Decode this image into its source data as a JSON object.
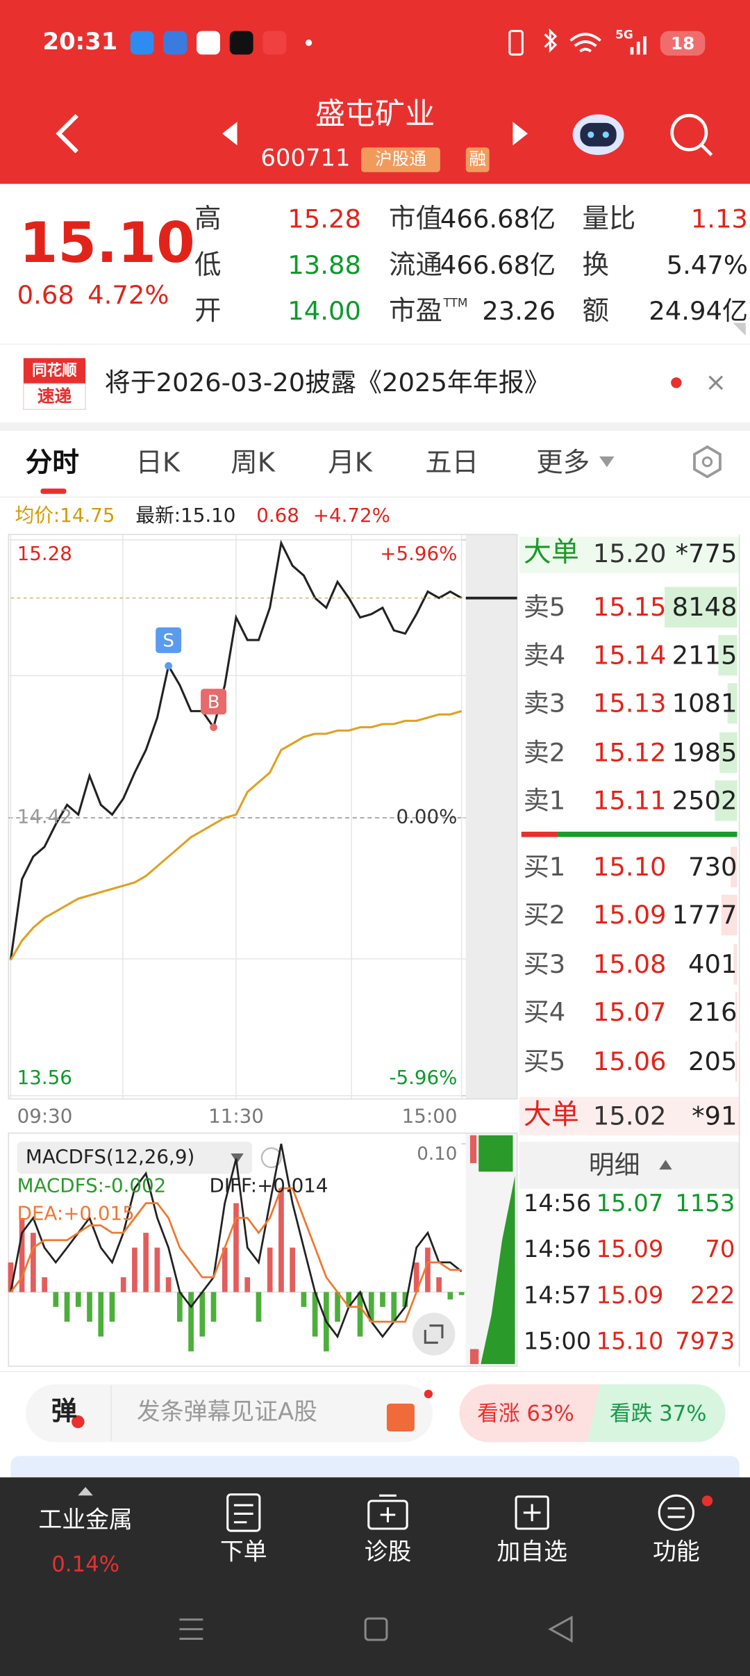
{
  "status_bar": {
    "time": "20:31",
    "network": "5G",
    "battery": "18"
  },
  "header": {
    "title": "盛屯矿业",
    "code": "600711",
    "tags": [
      "沪股通",
      "融"
    ]
  },
  "quote": {
    "price": "15.10",
    "change": "0.68",
    "change_pct": "4.72%",
    "stats": [
      [
        {
          "label": "高",
          "value": "15.28",
          "color": "#e2231a"
        },
        {
          "label": "市值",
          "value": "466.68亿",
          "color": "#222222"
        },
        {
          "label": "量比",
          "value": "1.13",
          "color": "#e2231a"
        }
      ],
      [
        {
          "label": "低",
          "value": "13.88",
          "color": "#0a9a2a"
        },
        {
          "label": "流通",
          "value": "466.68亿",
          "color": "#222222"
        },
        {
          "label": "换",
          "value": "5.47%",
          "color": "#222222"
        }
      ],
      [
        {
          "label": "开",
          "value": "14.00",
          "color": "#0a9a2a"
        },
        {
          "label": "市盈",
          "label_sup": "TTM",
          "value": "23.26",
          "color": "#222222"
        },
        {
          "label": "额",
          "value": "24.94亿",
          "color": "#222222"
        }
      ]
    ]
  },
  "notice": {
    "logo": [
      "同花顺",
      "速递"
    ],
    "text": "将于2026-03-20披露《2025年年报》"
  },
  "tabs": [
    "分时",
    "日K",
    "周K",
    "月K",
    "五日",
    "更多"
  ],
  "chart_data": [
    {
      "type": "line",
      "summary": {
        "avg": "均价:14.75",
        "latest": "最新:15.10",
        "change": "0.68",
        "change_pct": "+4.72%"
      },
      "xlim": [
        0,
        240
      ],
      "xticks": [
        {
          "value": 0,
          "label": "09:30"
        },
        {
          "value": 120,
          "label": "11:30"
        },
        {
          "value": 240,
          "label": "15:00"
        }
      ],
      "ylim": [
        13.56,
        15.28
      ],
      "yticks": [
        13.56,
        14.42,
        15.28
      ],
      "y2lim": [
        -5.96,
        5.96
      ],
      "y2ticks": [
        {
          "value": -5.96,
          "label": "-5.96%"
        },
        {
          "value": 0,
          "label": "0.00%"
        },
        {
          "value": 5.96,
          "label": "+5.96%"
        }
      ],
      "x": [
        0,
        6,
        12,
        18,
        24,
        30,
        36,
        42,
        48,
        54,
        60,
        66,
        72,
        78,
        84,
        90,
        96,
        102,
        108,
        114,
        120,
        126,
        132,
        138,
        144,
        150,
        156,
        162,
        168,
        174,
        180,
        186,
        192,
        198,
        204,
        210,
        216,
        222,
        228,
        234,
        240
      ],
      "series": [
        {
          "color": "#222222",
          "values": [
            13.98,
            14.23,
            14.3,
            14.33,
            14.4,
            14.46,
            14.43,
            14.55,
            14.46,
            14.43,
            14.48,
            14.56,
            14.63,
            14.73,
            14.89,
            14.83,
            14.75,
            14.75,
            14.7,
            14.83,
            15.04,
            14.97,
            14.97,
            15.07,
            15.27,
            15.2,
            15.17,
            15.1,
            15.07,
            15.15,
            15.1,
            15.04,
            15.05,
            15.07,
            15.0,
            14.99,
            15.05,
            15.12,
            15.1,
            15.12,
            15.1
          ]
        },
        {
          "color": "#e0a020",
          "values": [
            13.98,
            14.04,
            14.08,
            14.11,
            14.13,
            14.15,
            14.17,
            14.18,
            14.19,
            14.2,
            14.21,
            14.22,
            14.24,
            14.27,
            14.3,
            14.33,
            14.36,
            14.38,
            14.4,
            14.42,
            14.43,
            14.5,
            14.53,
            14.56,
            14.63,
            14.65,
            14.67,
            14.68,
            14.68,
            14.69,
            14.69,
            14.7,
            14.7,
            14.71,
            14.71,
            14.72,
            14.72,
            14.73,
            14.74,
            14.74,
            14.75
          ]
        }
      ],
      "annotations": [
        {
          "label": "S",
          "x": 84,
          "color": "#5b9bef"
        },
        {
          "label": "B",
          "x": 108,
          "color": "#e86a6a"
        }
      ]
    },
    {
      "type": "bar",
      "title": "MACDFS(12,26,9)",
      "labels": [
        {
          "text": "MACDFS:-0.002",
          "color": "#2a9a2a"
        },
        {
          "text": "DIFF:+0.014",
          "color": "#222222"
        },
        {
          "text": "DEA:+0.015",
          "color": "#f07830"
        }
      ],
      "xlim": [
        0,
        240
      ],
      "ylim": [
        -0.05,
        0.1
      ],
      "yticks": [
        {
          "value": 0.1,
          "label": "0.10"
        }
      ],
      "x": [
        0,
        6,
        12,
        18,
        24,
        30,
        36,
        42,
        48,
        54,
        60,
        66,
        72,
        78,
        84,
        90,
        96,
        102,
        108,
        114,
        120,
        126,
        132,
        138,
        144,
        150,
        156,
        162,
        168,
        174,
        180,
        186,
        192,
        198,
        204,
        210,
        216,
        222,
        228,
        234,
        240
      ],
      "values": [
        0.02,
        0.05,
        0.04,
        0.01,
        -0.01,
        -0.02,
        -0.01,
        -0.02,
        -0.03,
        -0.02,
        0.01,
        0.03,
        0.04,
        0.03,
        0.01,
        -0.02,
        -0.04,
        -0.03,
        -0.02,
        0.03,
        0.06,
        0.01,
        -0.02,
        0.03,
        0.07,
        0.03,
        -0.01,
        -0.03,
        -0.04,
        -0.02,
        -0.01,
        -0.03,
        -0.02,
        -0.01,
        -0.02,
        -0.01,
        0.02,
        0.03,
        0.01,
        -0.005,
        -0.002
      ],
      "colors": {
        "up": "#e35d5d",
        "down": "#4caf3a"
      },
      "lines": [
        {
          "color": "#222222",
          "values": [
            0.0,
            0.04,
            0.05,
            0.03,
            0.02,
            0.03,
            0.04,
            0.05,
            0.03,
            0.02,
            0.04,
            0.07,
            0.08,
            0.05,
            0.03,
            0.0,
            -0.01,
            0.0,
            0.01,
            0.06,
            0.09,
            0.03,
            0.02,
            0.06,
            0.1,
            0.06,
            0.03,
            0.0,
            -0.02,
            -0.03,
            -0.01,
            0.0,
            -0.02,
            -0.03,
            -0.02,
            -0.01,
            0.03,
            0.04,
            0.02,
            0.02,
            0.014
          ]
        },
        {
          "color": "#f07830",
          "values": [
            0.0,
            0.01,
            0.03,
            0.035,
            0.035,
            0.035,
            0.04,
            0.045,
            0.045,
            0.04,
            0.04,
            0.05,
            0.06,
            0.06,
            0.05,
            0.03,
            0.02,
            0.01,
            0.01,
            0.03,
            0.05,
            0.05,
            0.04,
            0.05,
            0.07,
            0.07,
            0.05,
            0.03,
            0.01,
            0.0,
            -0.01,
            -0.01,
            -0.02,
            -0.02,
            -0.02,
            -0.02,
            0.0,
            0.02,
            0.02,
            0.015,
            0.015
          ]
        }
      ]
    }
  ],
  "order_book": {
    "big_sell": {
      "label": "大单",
      "price": "15.20",
      "volume": "*775"
    },
    "asks": [
      {
        "label": "卖5",
        "price": "15.15",
        "volume": 8148
      },
      {
        "label": "卖4",
        "price": "15.14",
        "volume": 2115
      },
      {
        "label": "卖3",
        "price": "15.13",
        "volume": 1081
      },
      {
        "label": "卖2",
        "price": "15.12",
        "volume": 1985
      },
      {
        "label": "卖1",
        "price": "15.11",
        "volume": 2502
      }
    ],
    "bids": [
      {
        "label": "买1",
        "price": "15.10",
        "volume": 730
      },
      {
        "label": "买2",
        "price": "15.09",
        "volume": 1777
      },
      {
        "label": "买3",
        "price": "15.08",
        "volume": 401
      },
      {
        "label": "买4",
        "price": "15.07",
        "volume": 216
      },
      {
        "label": "买5",
        "price": "15.06",
        "volume": 205
      }
    ],
    "big_buy": {
      "label": "大单",
      "price": "15.02",
      "volume": "*91"
    },
    "detail_title": "明细",
    "trades": [
      {
        "time": "14:56",
        "price": "15.07",
        "volume": 1153,
        "color": "#0a9a2a"
      },
      {
        "time": "14:56",
        "price": "15.09",
        "volume": 70,
        "color": "#e2231a"
      },
      {
        "time": "14:57",
        "price": "15.09",
        "volume": 222,
        "color": "#e2231a"
      },
      {
        "time": "15:00",
        "price": "15.10",
        "volume": 7973,
        "color": "#e2231a"
      }
    ]
  },
  "danmaku": {
    "icon": "弹",
    "placeholder": "发条弹幕见证A股",
    "bull": "看涨 63%",
    "bear": "看跌 37%"
  },
  "bottom_nav": {
    "sector": "工业金属",
    "sector_change": "0.14%",
    "items": [
      "下单",
      "诊股",
      "加自选",
      "功能"
    ]
  }
}
